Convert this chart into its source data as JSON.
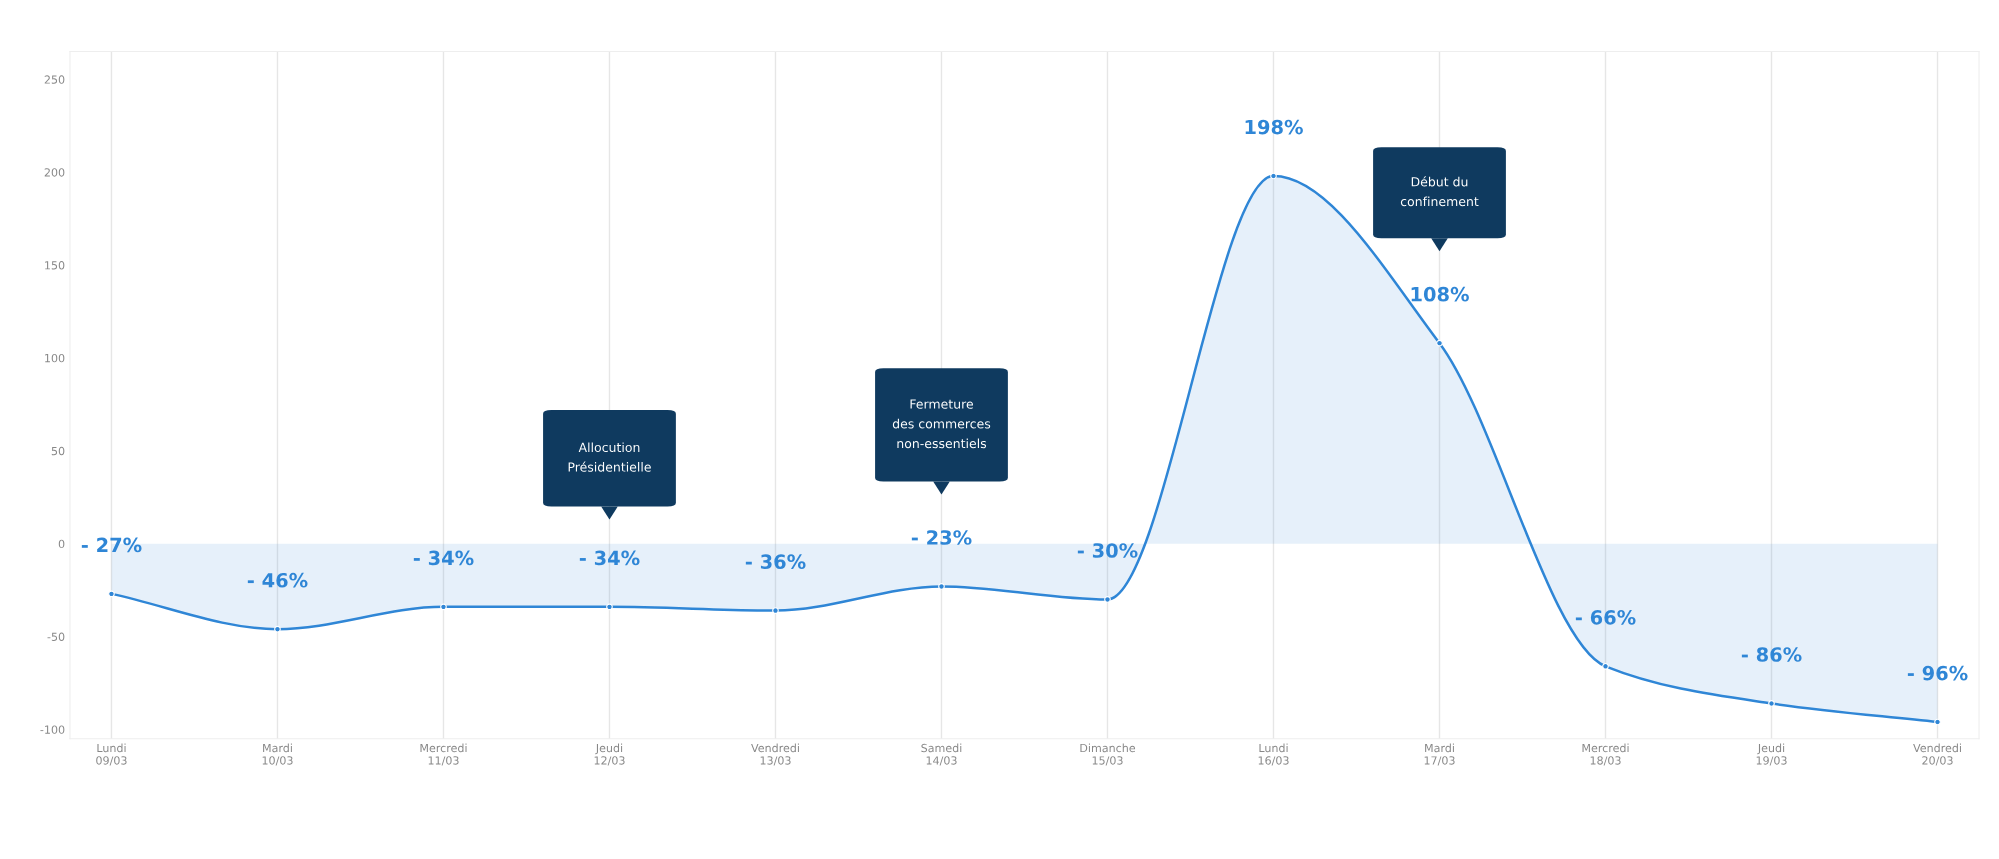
{
  "chart_data": {
    "type": "area",
    "categories": [
      "Lundi\n09/03",
      "Mardi\n10/03",
      "Mercredi\n11/03",
      "Jeudi\n12/03",
      "Vendredi\n13/03",
      "Samedi\n14/03",
      "Dimanche\n15/03",
      "Lundi\n16/03",
      "Mardi\n17/03",
      "Mercredi\n18/03",
      "Jeudi\n19/03",
      "Vendredi\n20/03"
    ],
    "series": [
      {
        "color": "#2f86d6",
        "values": [
          -27,
          -46,
          -34,
          -34,
          -36,
          -23,
          -30,
          198,
          108,
          -66,
          -86,
          -96
        ],
        "value_labels": [
          "- 27%",
          "- 46%",
          "- 34%",
          "- 34%",
          "- 36%",
          "- 23%",
          "- 30%",
          "198%",
          "108%",
          "- 66%",
          "- 86%",
          "- 96%"
        ]
      }
    ],
    "ylim": [
      -105,
      265
    ],
    "yticks": [
      -100,
      -50,
      0,
      50,
      100,
      150,
      200,
      250
    ],
    "grid": "x",
    "marker": "circle",
    "line_style": "solid",
    "annotations": [
      "Allocution\nPrésidentielle",
      "Fermeture\ndes commerces\nnon-essentiels",
      "Début du\nconfinement"
    ]
  }
}
